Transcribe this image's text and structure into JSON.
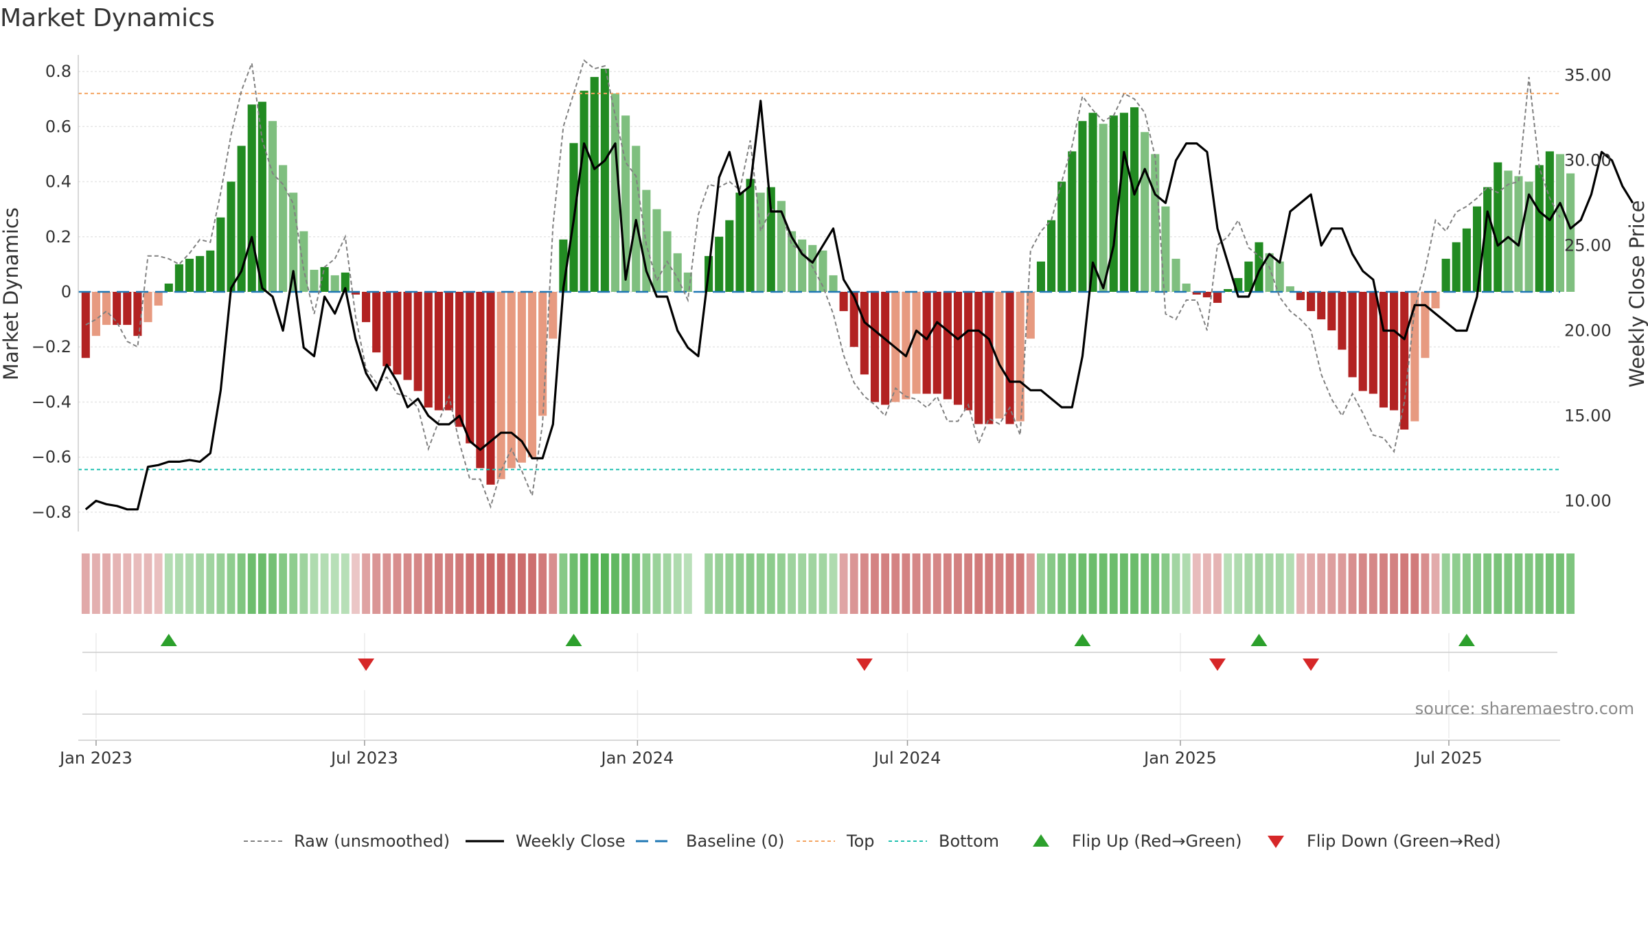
{
  "chart_data": {
    "type": "bar",
    "title": "Market Dynamics",
    "ylabel": "Market Dynamics",
    "y2label": "Weekly Close Price",
    "ylim": [
      -0.87,
      0.86
    ],
    "y2lim": [
      8.2,
      36.2
    ],
    "yticks": [
      -0.8,
      -0.6,
      -0.4,
      -0.2,
      0,
      0.2,
      0.4,
      0.6,
      0.8
    ],
    "ytick_labels": [
      "−0.8",
      "−0.6",
      "−0.4",
      "−0.2",
      "0",
      "0.2",
      "0.4",
      "0.6",
      "0.8"
    ],
    "y2ticks": [
      10,
      15,
      20,
      25,
      30,
      35
    ],
    "y2tick_labels": [
      "10.00",
      "15.00",
      "20.00",
      "25.00",
      "30.00",
      "35.00"
    ],
    "x_start": "2022-12-20",
    "x_end": "2025-09-14",
    "xticks": [
      {
        "date": "2023-01-01",
        "label": "Jan 2023"
      },
      {
        "date": "2023-07-01",
        "label": "Jul 2023"
      },
      {
        "date": "2024-01-01",
        "label": "Jan 2024"
      },
      {
        "date": "2024-07-01",
        "label": "Jul 2024"
      },
      {
        "date": "2025-01-01",
        "label": "Jan 2025"
      },
      {
        "date": "2025-07-01",
        "label": "Jul 2025"
      }
    ],
    "first_week": "2022-12-25",
    "smoothed": [
      -0.24,
      -0.16,
      -0.12,
      -0.12,
      -0.12,
      -0.16,
      -0.11,
      -0.05,
      0.03,
      0.1,
      0.12,
      0.13,
      0.15,
      0.27,
      0.4,
      0.53,
      0.68,
      0.69,
      0.62,
      0.46,
      0.36,
      0.22,
      0.08,
      0.09,
      0.06,
      0.07,
      -0.01,
      -0.11,
      -0.22,
      -0.27,
      -0.3,
      -0.32,
      -0.36,
      -0.42,
      -0.43,
      -0.43,
      -0.49,
      -0.55,
      -0.64,
      -0.7,
      -0.68,
      -0.64,
      -0.62,
      -0.6,
      -0.45,
      -0.17,
      0.19,
      0.54,
      0.73,
      0.78,
      0.81,
      0.72,
      0.64,
      0.53,
      0.37,
      0.3,
      0.22,
      0.14,
      0.07,
      null,
      0.13,
      0.2,
      0.26,
      0.36,
      0.41,
      0.36,
      0.38,
      0.33,
      0.22,
      0.19,
      0.17,
      0.15,
      0.06,
      -0.07,
      -0.2,
      -0.3,
      -0.4,
      -0.41,
      -0.4,
      -0.39,
      -0.37,
      -0.37,
      -0.37,
      -0.39,
      -0.41,
      -0.43,
      -0.48,
      -0.48,
      -0.46,
      -0.48,
      -0.47,
      -0.17,
      0.11,
      0.26,
      0.4,
      0.51,
      0.62,
      0.65,
      0.61,
      0.64,
      0.65,
      0.67,
      0.58,
      0.5,
      0.31,
      0.12,
      0.03,
      -0.01,
      -0.02,
      -0.04,
      0.01,
      0.05,
      0.11,
      0.18,
      0.14,
      0.11,
      0.02,
      -0.03,
      -0.07,
      -0.1,
      -0.14,
      -0.21,
      -0.31,
      -0.36,
      -0.37,
      -0.42,
      -0.43,
      -0.5,
      -0.47,
      -0.24,
      -0.06,
      0.12,
      0.18,
      0.23,
      0.31,
      0.38,
      0.47,
      0.44,
      0.42,
      0.4,
      0.46,
      0.51,
      0.5,
      0.43
    ],
    "raw": [
      -0.12,
      -0.1,
      -0.07,
      -0.11,
      -0.18,
      -0.2,
      0.13,
      0.13,
      0.12,
      0.1,
      0.14,
      0.19,
      0.18,
      0.36,
      0.57,
      0.73,
      0.83,
      0.55,
      0.43,
      0.39,
      0.32,
      0.08,
      -0.08,
      0.09,
      0.12,
      0.2,
      -0.09,
      -0.28,
      -0.33,
      -0.31,
      -0.37,
      -0.38,
      -0.42,
      -0.57,
      -0.47,
      -0.38,
      -0.55,
      -0.68,
      -0.68,
      -0.78,
      -0.65,
      -0.57,
      -0.65,
      -0.74,
      -0.48,
      0.24,
      0.6,
      0.72,
      0.84,
      0.81,
      0.82,
      0.64,
      0.47,
      0.42,
      0.17,
      0.04,
      0.11,
      0.05,
      -0.03,
      0.28,
      0.39,
      0.38,
      0.4,
      0.37,
      0.55,
      0.22,
      0.3,
      0.29,
      0.17,
      0.15,
      0.09,
      0.02,
      -0.08,
      -0.23,
      -0.33,
      -0.38,
      -0.41,
      -0.45,
      -0.35,
      -0.38,
      -0.39,
      -0.42,
      -0.38,
      -0.47,
      -0.47,
      -0.41,
      -0.55,
      -0.46,
      -0.48,
      -0.42,
      -0.52,
      0.15,
      0.22,
      0.26,
      0.4,
      0.53,
      0.71,
      0.66,
      0.62,
      0.64,
      0.72,
      0.7,
      0.65,
      0.49,
      -0.08,
      -0.1,
      -0.03,
      -0.03,
      -0.14,
      0.17,
      0.2,
      0.26,
      0.16,
      0.13,
      0.09,
      -0.02,
      -0.07,
      -0.1,
      -0.14,
      -0.3,
      -0.39,
      -0.45,
      -0.37,
      -0.44,
      -0.52,
      -0.53,
      -0.58,
      -0.4,
      -0.06,
      0.08,
      0.26,
      0.22,
      0.29,
      0.31,
      0.34,
      0.38,
      0.36,
      0.39,
      0.4,
      0.78,
      0.45,
      0.34,
      0.27
    ],
    "weekly_close": [
      9.5,
      10.0,
      9.8,
      9.7,
      9.5,
      9.5,
      12.0,
      12.1,
      12.3,
      12.3,
      12.4,
      12.3,
      12.8,
      16.5,
      22.5,
      23.5,
      25.5,
      22.5,
      22.0,
      20.0,
      23.5,
      19.0,
      18.5,
      22.0,
      21.0,
      22.5,
      19.5,
      17.5,
      16.5,
      18.0,
      17.0,
      15.5,
      16.0,
      15.0,
      14.5,
      14.5,
      15.0,
      13.5,
      13.0,
      13.5,
      14.0,
      14.0,
      13.5,
      12.5,
      12.5,
      14.5,
      22.5,
      26.5,
      31.0,
      29.5,
      30.0,
      31.0,
      23.0,
      26.5,
      23.5,
      22.0,
      22.0,
      20.0,
      19.0,
      18.5,
      23.5,
      29.0,
      30.5,
      28.0,
      28.5,
      33.5,
      27.0,
      27.0,
      25.5,
      24.5,
      24.0,
      25.0,
      26.0,
      23.0,
      22.0,
      20.5,
      20.0,
      19.5,
      19.0,
      18.5,
      20.0,
      19.5,
      20.5,
      20.0,
      19.5,
      20.0,
      20.0,
      19.5,
      18.0,
      17.0,
      17.0,
      16.5,
      16.5,
      16.0,
      15.5,
      15.5,
      18.5,
      24.0,
      22.5,
      25.0,
      30.5,
      28.0,
      29.5,
      28.0,
      27.5,
      30.0,
      31.0,
      31.0,
      30.5,
      26.0,
      24.0,
      22.0,
      22.0,
      23.5,
      24.5,
      24.0,
      27.0,
      27.5,
      28.0,
      25.0,
      26.0,
      26.0,
      24.5,
      23.5,
      23.0,
      20.0,
      20.0,
      19.5,
      21.5,
      21.5,
      21.0,
      20.5,
      20.0,
      20.0,
      22.0,
      27.0,
      25.0,
      25.5,
      25.0,
      28.0,
      27.0,
      26.5,
      27.5,
      26.0,
      26.5,
      28.0,
      30.5,
      30.0,
      28.5,
      27.5
    ],
    "strips": [
      -0.32,
      -0.28,
      -0.3,
      -0.26,
      -0.24,
      -0.2,
      -0.22,
      -0.18,
      0.28,
      0.3,
      0.32,
      0.36,
      0.4,
      0.46,
      0.5,
      0.6,
      0.72,
      0.74,
      0.68,
      0.58,
      0.5,
      0.42,
      0.3,
      0.28,
      0.26,
      0.26,
      -0.14,
      -0.36,
      -0.44,
      -0.46,
      -0.48,
      -0.5,
      -0.52,
      -0.56,
      -0.58,
      -0.58,
      -0.62,
      -0.66,
      -0.7,
      -0.74,
      -0.72,
      -0.7,
      -0.68,
      -0.66,
      -0.6,
      -0.48,
      0.56,
      0.72,
      0.84,
      0.86,
      0.88,
      0.8,
      0.74,
      0.64,
      0.5,
      0.44,
      0.38,
      0.3,
      0.24,
      null,
      0.42,
      0.46,
      0.48,
      0.52,
      0.56,
      0.52,
      0.52,
      0.48,
      0.42,
      0.4,
      0.4,
      0.38,
      0.3,
      -0.34,
      -0.44,
      -0.5,
      -0.54,
      -0.56,
      -0.54,
      -0.54,
      -0.52,
      -0.52,
      -0.52,
      -0.54,
      -0.56,
      -0.58,
      -0.6,
      -0.6,
      -0.58,
      -0.6,
      -0.6,
      -0.42,
      0.46,
      0.56,
      0.64,
      0.68,
      0.72,
      0.74,
      0.72,
      0.72,
      0.74,
      0.74,
      0.7,
      0.66,
      0.54,
      0.38,
      0.3,
      -0.2,
      -0.24,
      -0.26,
      0.26,
      0.3,
      0.34,
      0.38,
      0.36,
      0.34,
      0.28,
      -0.26,
      -0.3,
      -0.34,
      -0.38,
      -0.42,
      -0.48,
      -0.52,
      -0.52,
      -0.56,
      -0.56,
      -0.6,
      -0.6,
      -0.48,
      -0.3,
      0.46,
      0.5,
      0.54,
      0.58,
      0.6,
      0.64,
      0.62,
      0.62,
      0.6,
      0.64,
      0.66,
      0.66,
      0.62
    ],
    "top": 0.72,
    "bottom": -0.645,
    "baseline": 0,
    "flip_up": [
      8,
      47,
      96,
      113,
      133
    ],
    "flip_down": [
      27,
      75,
      109,
      118
    ],
    "colors": {
      "strong_green": "#228b22",
      "light_green": "#7fbf7f",
      "strong_red": "#b22222",
      "light_red": "#e79a80",
      "raw_line": "#808080",
      "close_line": "#000000",
      "baseline": "#1f77b4",
      "top": "#f4a460",
      "bottom": "#20c0b0",
      "flip_up": "#2ca02c",
      "flip_down": "#d62728"
    },
    "legend": [
      {
        "key": "raw",
        "label": "Raw (unsmoothed)"
      },
      {
        "key": "close",
        "label": "Weekly Close"
      },
      {
        "key": "baseline",
        "label": "Baseline (0)"
      },
      {
        "key": "top",
        "label": "Top"
      },
      {
        "key": "bottom",
        "label": "Bottom"
      },
      {
        "key": "flip_up",
        "label": "Flip Up (Red→Green)"
      },
      {
        "key": "flip_down",
        "label": "Flip Down (Green→Red)"
      }
    ],
    "legend_position": "bottom-center",
    "grid": true,
    "source": "source: sharemaestro.com"
  }
}
